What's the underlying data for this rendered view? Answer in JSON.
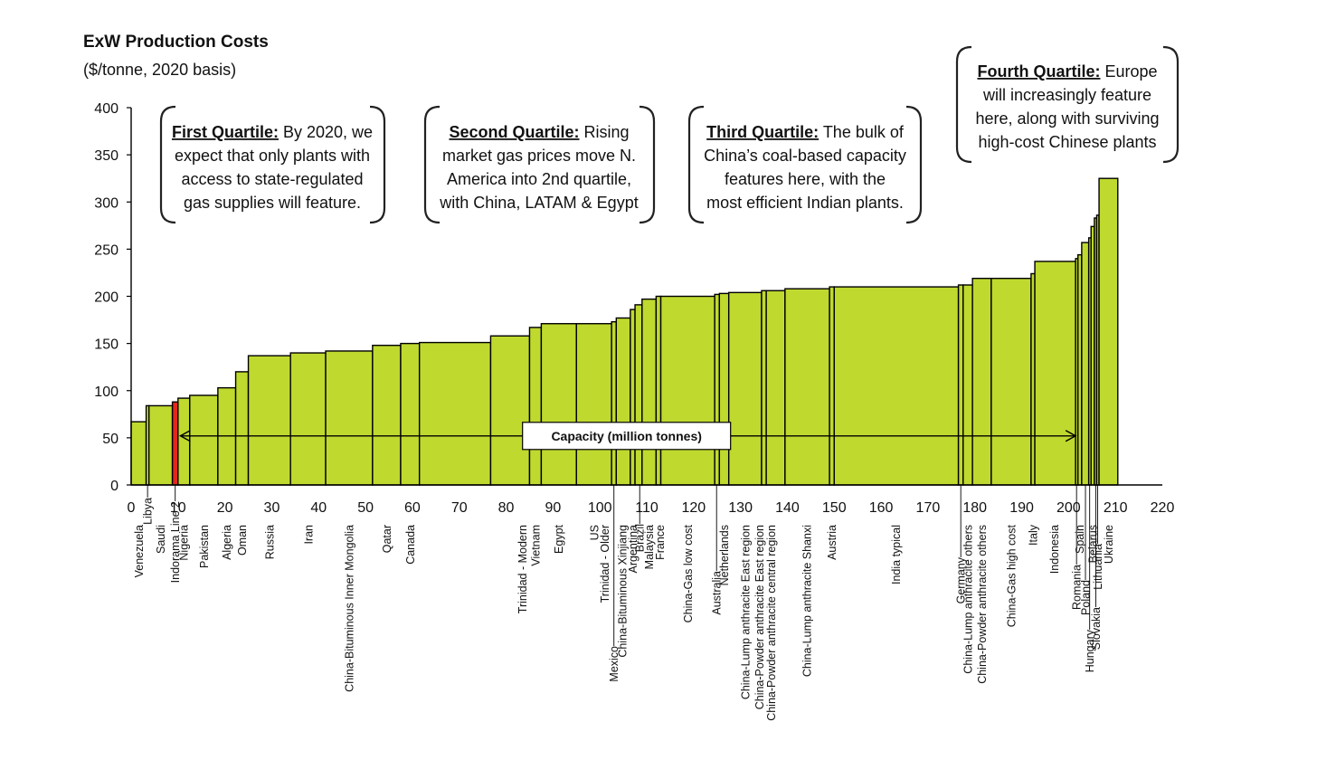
{
  "title": "ExW Production Costs",
  "subtitle": "($/tonne,  2020 basis)",
  "chart_data": {
    "type": "bar",
    "subtype": "cost-curve (variable-width bars)",
    "title": "ExW Production Costs",
    "subtitle": "($/tonne,  2020 basis)",
    "xlabel": "Capacity (million tonnes)",
    "ylabel": "",
    "xlim": [
      0,
      220
    ],
    "ylim": [
      0,
      400
    ],
    "xticks": [
      0,
      10,
      20,
      30,
      40,
      50,
      60,
      70,
      80,
      90,
      100,
      110,
      120,
      130,
      140,
      150,
      160,
      170,
      180,
      190,
      200,
      210,
      220
    ],
    "yticks": [
      0,
      50,
      100,
      150,
      200,
      250,
      300,
      350,
      400
    ],
    "highlight_color": "#e4261c",
    "bar_color": "#bfd92f",
    "bars": [
      {
        "name": "Venezuela",
        "x0": 0,
        "x1": 3.2,
        "cost": 67
      },
      {
        "name": "Libya",
        "x0": 3.2,
        "x1": 3.8,
        "cost": 84
      },
      {
        "name": "Saudi",
        "x0": 3.8,
        "x1": 8.8,
        "cost": 84
      },
      {
        "name": "Indorama Line 2",
        "x0": 8.8,
        "x1": 10.0,
        "cost": 88,
        "highlight": true
      },
      {
        "name": "Nigeria",
        "x0": 10.0,
        "x1": 12.5,
        "cost": 92
      },
      {
        "name": "Pakistan",
        "x0": 12.5,
        "x1": 18.5,
        "cost": 95
      },
      {
        "name": "Algeria",
        "x0": 18.5,
        "x1": 22.3,
        "cost": 103
      },
      {
        "name": "Oman",
        "x0": 22.3,
        "x1": 25.0,
        "cost": 120
      },
      {
        "name": "Russia",
        "x0": 25.0,
        "x1": 34.0,
        "cost": 137
      },
      {
        "name": "Iran",
        "x0": 34.0,
        "x1": 41.5,
        "cost": 140
      },
      {
        "name": "China-Bituminous Inner Mongolia",
        "x0": 41.5,
        "x1": 51.5,
        "cost": 142
      },
      {
        "name": "Qatar",
        "x0": 51.5,
        "x1": 57.5,
        "cost": 148
      },
      {
        "name": "Canada",
        "x0": 57.5,
        "x1": 61.5,
        "cost": 150
      },
      {
        "name": "Trinidad - Modern",
        "x0": 61.5,
        "x1": 76.7,
        "cost": 151
      },
      {
        "name": "Vietnam",
        "x0": 76.7,
        "x1": 85.0,
        "cost": 158
      },
      {
        "name": "Egypt",
        "x0": 85.0,
        "x1": 87.5,
        "cost": 167
      },
      {
        "name": "US",
        "x0": 87.5,
        "x1": 95.0,
        "cost": 171
      },
      {
        "name": "Trinidad - Older",
        "x0": 95.0,
        "x1": 102.5,
        "cost": 171
      },
      {
        "name": "Mexico",
        "x0": 102.5,
        "x1": 103.5,
        "cost": 173
      },
      {
        "name": "China-Bituminous Xinjiang",
        "x0": 103.5,
        "x1": 106.5,
        "cost": 177
      },
      {
        "name": "Argentina",
        "x0": 106.5,
        "x1": 107.5,
        "cost": 186
      },
      {
        "name": "Brazil",
        "x0": 107.5,
        "x1": 109.0,
        "cost": 191
      },
      {
        "name": "Malaysia",
        "x0": 109.0,
        "x1": 112.0,
        "cost": 197
      },
      {
        "name": "France",
        "x0": 112.0,
        "x1": 113.0,
        "cost": 200
      },
      {
        "name": "China-Gas low cost",
        "x0": 113.0,
        "x1": 124.5,
        "cost": 200
      },
      {
        "name": "Australia",
        "x0": 124.5,
        "x1": 125.5,
        "cost": 202
      },
      {
        "name": "Netherlands",
        "x0": 125.5,
        "x1": 127.5,
        "cost": 203
      },
      {
        "name": "China-Lump anthracite East region",
        "x0": 127.5,
        "x1": 134.5,
        "cost": 204
      },
      {
        "name": "China-Powder anthracite East region",
        "x0": 134.5,
        "x1": 135.5,
        "cost": 206
      },
      {
        "name": "China-Powder anthracite central region",
        "x0": 135.5,
        "x1": 139.5,
        "cost": 206
      },
      {
        "name": "China-Lump anthracite Shanxi",
        "x0": 139.5,
        "x1": 149.0,
        "cost": 208
      },
      {
        "name": "Austria",
        "x0": 149.0,
        "x1": 150.0,
        "cost": 210
      },
      {
        "name": "India typical",
        "x0": 150.0,
        "x1": 176.5,
        "cost": 210
      },
      {
        "name": "Germany",
        "x0": 176.5,
        "x1": 177.5,
        "cost": 212
      },
      {
        "name": "China-Lump anthracite others",
        "x0": 177.5,
        "x1": 179.5,
        "cost": 212
      },
      {
        "name": "China-Powder anthracite others",
        "x0": 179.5,
        "x1": 183.5,
        "cost": 219
      },
      {
        "name": "China-Gas high cost",
        "x0": 183.5,
        "x1": 192.0,
        "cost": 219
      },
      {
        "name": "Italy",
        "x0": 192.0,
        "x1": 192.8,
        "cost": 224
      },
      {
        "name": "Indonesia",
        "x0": 192.8,
        "x1": 201.5,
        "cost": 237
      },
      {
        "name": "Romania",
        "x0": 201.5,
        "x1": 202.0,
        "cost": 240
      },
      {
        "name": "Spain",
        "x0": 202.0,
        "x1": 202.8,
        "cost": 244
      },
      {
        "name": "Poland",
        "x0": 202.8,
        "x1": 204.3,
        "cost": 257
      },
      {
        "name": "Hungary",
        "x0": 204.3,
        "x1": 204.8,
        "cost": 262
      },
      {
        "name": "Belarus",
        "x0": 204.8,
        "x1": 205.5,
        "cost": 274
      },
      {
        "name": "Slovakia",
        "x0": 205.5,
        "x1": 206.0,
        "cost": 283
      },
      {
        "name": "Lithuania",
        "x0": 206.0,
        "x1": 206.5,
        "cost": 286
      },
      {
        "name": "Ukraine",
        "x0": 206.5,
        "x1": 210.5,
        "cost": 325
      }
    ],
    "category_labels": [
      {
        "name": "Venezuela",
        "x": 1.6,
        "len": 0
      },
      {
        "name": "Libya",
        "x": 3.5,
        "len": 14
      },
      {
        "name": "Saudi",
        "x": 6.3,
        "len": 0
      },
      {
        "name": "Indorama Line 2",
        "x": 9.4,
        "len": 18
      },
      {
        "name": "Nigeria",
        "x": 11.2,
        "len": 0
      },
      {
        "name": "Pakistan",
        "x": 15.5,
        "len": 0
      },
      {
        "name": "Algeria",
        "x": 20.4,
        "len": 0
      },
      {
        "name": "Oman",
        "x": 23.6,
        "len": 0
      },
      {
        "name": "Russia",
        "x": 29.5,
        "len": 0
      },
      {
        "name": "Iran",
        "x": 37.8,
        "len": 0
      },
      {
        "name": "China-Bituminous Inner Mongolia",
        "x": 46.5,
        "len": 0
      },
      {
        "name": "Qatar",
        "x": 54.5,
        "len": 0
      },
      {
        "name": "Canada",
        "x": 59.5,
        "len": 0
      },
      {
        "name": "Trinidad - Modern",
        "x": 83.5,
        "len": 0
      },
      {
        "name": "Vietnam",
        "x": 86.3,
        "len": 0
      },
      {
        "name": "Egypt",
        "x": 91.2,
        "len": 0
      },
      {
        "name": "US",
        "x": 98.8,
        "len": 0
      },
      {
        "name": "Trinidad - Older",
        "x": 101.0,
        "len": 0
      },
      {
        "name": "Mexico",
        "x": 103.0,
        "len": 178
      },
      {
        "name": "China-Bituminous Xinjiang",
        "x": 104.8,
        "len": 0
      },
      {
        "name": "Argentina",
        "x": 107.0,
        "len": 0
      },
      {
        "name": "Brazil",
        "x": 108.5,
        "len": 43
      },
      {
        "name": "Malaysia",
        "x": 110.5,
        "len": 0
      },
      {
        "name": "France",
        "x": 112.8,
        "len": 0
      },
      {
        "name": "China-Gas low cost",
        "x": 118.8,
        "len": 0
      },
      {
        "name": "Australia",
        "x": 124.9,
        "len": 95
      },
      {
        "name": "Netherlands",
        "x": 126.5,
        "len": 0
      },
      {
        "name": "China-Lump anthracite East region",
        "x": 131.0,
        "len": 0
      },
      {
        "name": "China-Powder anthracite East region",
        "x": 134.0,
        "len": 0
      },
      {
        "name": "China-Powder anthracite central region",
        "x": 136.5,
        "len": 0
      },
      {
        "name": "China-Lump anthracite Shanxi",
        "x": 144.2,
        "len": 0
      },
      {
        "name": "Austria",
        "x": 149.5,
        "len": 0
      },
      {
        "name": "India typical",
        "x": 163.2,
        "len": 0
      },
      {
        "name": "Germany",
        "x": 177.0,
        "len": 80
      },
      {
        "name": "China-Lump anthracite others",
        "x": 178.5,
        "len": 0
      },
      {
        "name": "China-Powder anthracite others",
        "x": 181.5,
        "len": 0
      },
      {
        "name": "China-Gas high cost",
        "x": 187.8,
        "len": 0
      },
      {
        "name": "Italy",
        "x": 192.4,
        "len": 0
      },
      {
        "name": "Indonesia",
        "x": 196.9,
        "len": 0
      },
      {
        "name": "Romania",
        "x": 201.7,
        "len": 88
      },
      {
        "name": "Spain",
        "x": 202.3,
        "len": 0
      },
      {
        "name": "Poland",
        "x": 203.6,
        "len": 105
      },
      {
        "name": "Hungary",
        "x": 204.5,
        "len": 160
      },
      {
        "name": "Belarus",
        "x": 205.1,
        "len": 0
      },
      {
        "name": "Slovakia",
        "x": 205.8,
        "len": 135
      },
      {
        "name": "Lithuania",
        "x": 206.2,
        "len": 65
      },
      {
        "name": "Ukraine",
        "x": 208.5,
        "len": 0
      }
    ],
    "annotations": [
      {
        "id": "first-quartile",
        "keyword": "First Quartile:",
        "lines": [
          " By 2020, we",
          "expect that only plants with",
          "access to state-regulated",
          "gas supplies will feature."
        ]
      },
      {
        "id": "second-quartile",
        "keyword": "Second Quartile:",
        "lines": [
          " Rising",
          "market gas prices move N.",
          "America into 2nd quartile,",
          "with China, LATAM & Egypt"
        ]
      },
      {
        "id": "third-quartile",
        "keyword": "Third Quartile:",
        "lines": [
          " The bulk of",
          "China’s coal-based capacity",
          "features here, with the",
          "most efficient Indian plants."
        ]
      },
      {
        "id": "fourth-quartile",
        "keyword": "Fourth Quartile:",
        "lines": [
          " Europe",
          "will increasingly feature",
          "here, along with surviving",
          "high-cost Chinese plants"
        ]
      }
    ]
  }
}
